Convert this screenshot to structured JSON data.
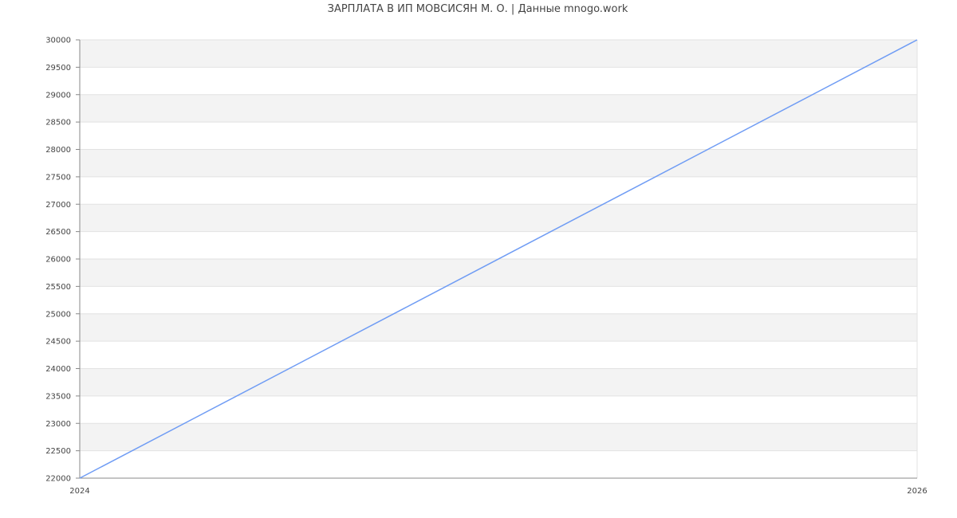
{
  "chart_data": {
    "type": "line",
    "title": "ЗАРПЛАТА В ИП МОВСИСЯН М. О. | Данные mnogo.work",
    "xlabel": "",
    "ylabel": "",
    "x": [
      2024,
      2026
    ],
    "series": [
      {
        "values": [
          22000,
          30000
        ],
        "color": "#6f9cf4"
      }
    ],
    "xlim": [
      2024,
      2026
    ],
    "ylim": [
      22000,
      30000
    ],
    "x_ticks": [
      "2024",
      "2026"
    ],
    "y_ticks": [
      "22000",
      "22500",
      "23000",
      "23500",
      "24000",
      "24500",
      "25000",
      "25500",
      "26000",
      "26500",
      "27000",
      "27500",
      "28000",
      "28500",
      "29000",
      "29500",
      "30000"
    ],
    "grid": true,
    "band_colors": [
      "#f3f3f3",
      "#ffffff"
    ],
    "legend": "none"
  }
}
